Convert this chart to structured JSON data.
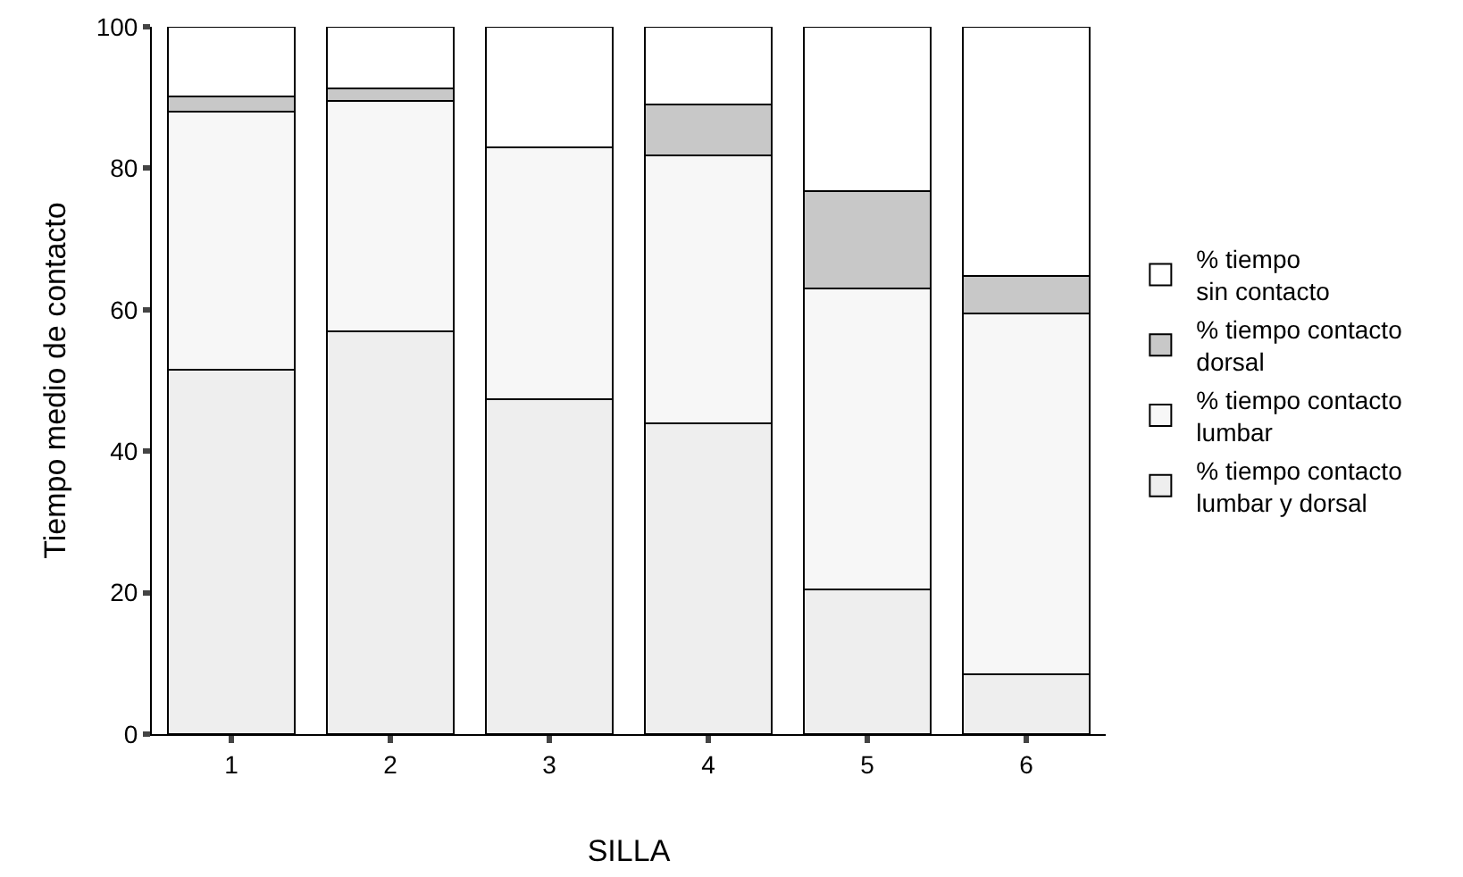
{
  "chart_data": {
    "type": "bar",
    "stacked": true,
    "xlabel": "SILLA",
    "ylabel": "Tiempo medio de contacto",
    "categories": [
      "1",
      "2",
      "3",
      "4",
      "5",
      "6"
    ],
    "series": [
      {
        "name": "% tiempo contacto\nlumbar y dorsal",
        "color": "#eeeeee",
        "values": [
          51.5,
          57,
          47.3,
          44,
          20.5,
          8.5
        ]
      },
      {
        "name": "% tiempo contacto\nlumbar",
        "color": "#f7f7f7",
        "values": [
          36.5,
          32.5,
          35.7,
          37.8,
          42.5,
          51
        ]
      },
      {
        "name": "% tiempo contacto\ndorsal",
        "color": "#c8c8c8",
        "values": [
          2.2,
          1.8,
          0,
          7.2,
          13.8,
          5.3
        ]
      },
      {
        "name": "% tiempo\nsin contacto",
        "color": "#ffffff",
        "values": [
          9.8,
          8.7,
          17,
          11,
          23.2,
          35.2
        ]
      }
    ],
    "ylim": [
      0,
      100
    ],
    "yticks": [
      0,
      20,
      40,
      60,
      80,
      100
    ],
    "grid": false,
    "legend": "right"
  }
}
